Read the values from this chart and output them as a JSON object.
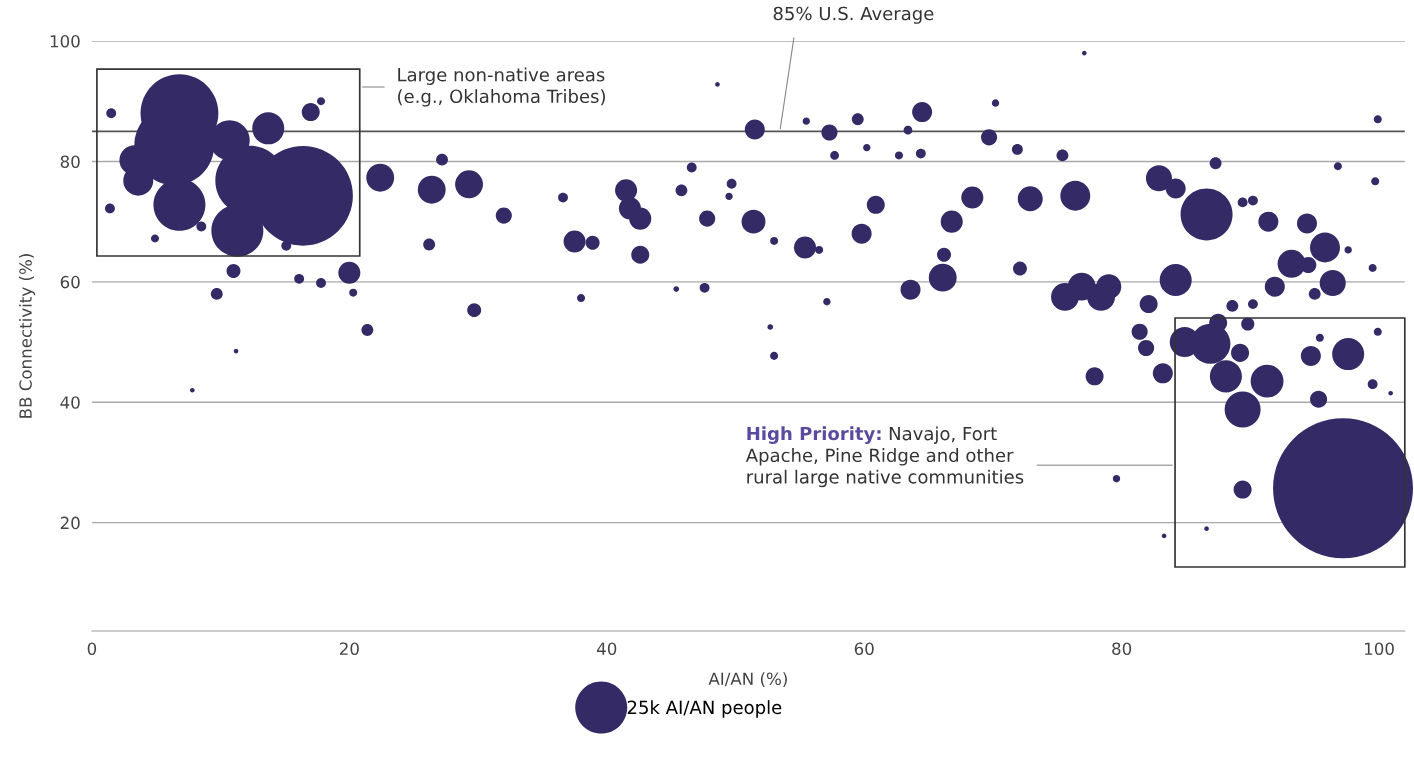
{
  "chart_data": {
    "type": "bubble",
    "xlabel": "AI/AN (%)",
    "ylabel": "BB Connectivity (%)",
    "xlim": [
      0,
      102
    ],
    "xticks": [
      0,
      20,
      40,
      60,
      80,
      100
    ],
    "ylim": [
      2,
      100
    ],
    "yticks": [
      20,
      40,
      60,
      80,
      100
    ],
    "grid": "y",
    "size_legend": [
      {
        "value": 25,
        "label": "25k AI/AN people"
      }
    ],
    "ref_lines": [
      {
        "axis": "y",
        "value": 85,
        "label": "85% U.S. Average",
        "color": "#555555"
      }
    ],
    "annotations": [
      "Large non-native areas\n(e.g., Oklahoma Tribes)",
      "High Priority:",
      "Navajo, Fort\nApache, Pine Ridge and other\nrural large native communities"
    ],
    "series": [
      {
        "color": "#332a66",
        "x": [
          6.8,
          6.4,
          6.8,
          10.7,
          13.7,
          12.3,
          11.3,
          16.4,
          3.3,
          3.6,
          17.0,
          22.4,
          20.0,
          11.0,
          9.7,
          21.4,
          26.4,
          29.3,
          29.7,
          32.0,
          27.2,
          1.4,
          1.5,
          17.8,
          26.2,
          16.1,
          17.8,
          7.8,
          4.9,
          15.1,
          8.5,
          20.3,
          11.2,
          51.5,
          57.3,
          64.5,
          59.5,
          41.5,
          41.8,
          42.6,
          37.5,
          38.9,
          42.6,
          51.4,
          55.4,
          47.8,
          45.8,
          49.7,
          59.8,
          60.9,
          66.8,
          66.1,
          63.6,
          66.2,
          36.6,
          46.6,
          47.6,
          38.0,
          53.0,
          52.7,
          57.1,
          48.6,
          45.4,
          49.5,
          53.0,
          56.5,
          60.2,
          57.7,
          62.7,
          64.4,
          63.4,
          55.5,
          97.2,
          86.6,
          68.4,
          72.9,
          76.4,
          82.9,
          84.2,
          69.7,
          71.9,
          75.4,
          72.1,
          75.6,
          76.9,
          78.4,
          79.0,
          82.1,
          84.2,
          77.9,
          81.4,
          81.9,
          83.2,
          84.9,
          86.9,
          87.5,
          88.1,
          89.2,
          89.4,
          91.3,
          89.4,
          95.3,
          94.7,
          97.6,
          95.8,
          93.2,
          94.5,
          96.4,
          94.4,
          91.4,
          91.9,
          95.0,
          99.5,
          87.3,
          88.6,
          90.2,
          89.8,
          95.4,
          99.9,
          79.6,
          83.3,
          86.6,
          99.7,
          99.9,
          77.1,
          70.2,
          96.8,
          89.4,
          90.2,
          97.6,
          99.5,
          100.9
        ],
        "values": [
          88.0,
          82.7,
          72.8,
          83.5,
          85.5,
          76.8,
          68.5,
          74.3,
          80.2,
          76.8,
          88.2,
          77.3,
          61.5,
          61.8,
          58.0,
          52.0,
          75.3,
          76.2,
          55.3,
          71.0,
          80.3,
          72.2,
          88.0,
          90.0,
          66.2,
          60.5,
          59.8,
          42.0,
          67.2,
          66.0,
          69.2,
          58.2,
          48.5,
          85.3,
          84.8,
          88.2,
          87.0,
          75.2,
          72.2,
          70.5,
          66.7,
          66.5,
          64.5,
          70.0,
          65.7,
          70.5,
          75.2,
          76.3,
          68.0,
          72.8,
          70.0,
          60.7,
          58.7,
          64.5,
          74.0,
          79.0,
          59.0,
          57.3,
          47.7,
          52.5,
          56.7,
          92.8,
          58.8,
          74.2,
          66.8,
          65.3,
          82.3,
          81.0,
          81.0,
          81.3,
          85.2,
          86.7,
          25.7,
          71.2,
          74.0,
          73.8,
          74.3,
          77.2,
          75.5,
          84.0,
          82.0,
          81.0,
          62.2,
          57.5,
          59.2,
          57.5,
          59.2,
          56.3,
          60.3,
          44.3,
          51.7,
          49.0,
          44.8,
          50.0,
          49.7,
          53.2,
          44.3,
          48.2,
          38.8,
          43.5,
          25.5,
          40.5,
          47.7,
          48.0,
          65.7,
          63.0,
          62.8,
          59.8,
          69.7,
          70.0,
          59.2,
          58.0,
          43.0,
          79.7,
          56.0,
          56.3,
          53.0,
          50.7,
          51.7,
          27.3,
          17.8,
          19.0,
          76.7,
          87.0,
          98.0,
          89.7,
          79.2,
          73.2,
          73.5,
          65.3,
          62.3,
          41.5
        ],
        "sizes": [
          56,
          59,
          25,
          15,
          9.5,
          45,
          25,
          92,
          8.3,
          8.3,
          3,
          7.2,
          4.5,
          1.8,
          1.3,
          1.3,
          7.2,
          7.2,
          1.8,
          2.4,
          1.3,
          0.9,
          0.9,
          0.6,
          1.3,
          0.9,
          0.9,
          0.2,
          0.6,
          0.9,
          0.9,
          0.6,
          0.2,
          3.7,
          2.4,
          3.7,
          1.3,
          4.5,
          4.5,
          4.5,
          4.5,
          1.8,
          3,
          5.3,
          4.5,
          2.4,
          1.3,
          0.9,
          3.7,
          3,
          4.5,
          7.2,
          3.7,
          1.8,
          0.9,
          0.9,
          0.9,
          0.6,
          0.6,
          0.3,
          0.5,
          0.2,
          0.3,
          0.5,
          0.6,
          0.6,
          0.5,
          0.7,
          0.6,
          0.9,
          0.7,
          0.5,
          181,
          25,
          4.5,
          5.8,
          8.3,
          6.3,
          3.7,
          2.4,
          1.1,
          1.3,
          1.8,
          7.2,
          7.2,
          7.2,
          5.8,
          3,
          9.5,
          3,
          2.4,
          2.4,
          3.7,
          8.3,
          14.8,
          3,
          9.5,
          3,
          12,
          10,
          3,
          2.7,
          3.7,
          9.5,
          8.3,
          7.2,
          2.4,
          6.3,
          3.7,
          3.7,
          3.7,
          1.3,
          0.9,
          1.3,
          1.3,
          0.9,
          1.6,
          0.6,
          0.6,
          0.5,
          0.2,
          0.2,
          0.6,
          0.6,
          0.2,
          0.5,
          0.6,
          0.9,
          0.9,
          0.5,
          0.6,
          0.2
        ]
      }
    ]
  }
}
